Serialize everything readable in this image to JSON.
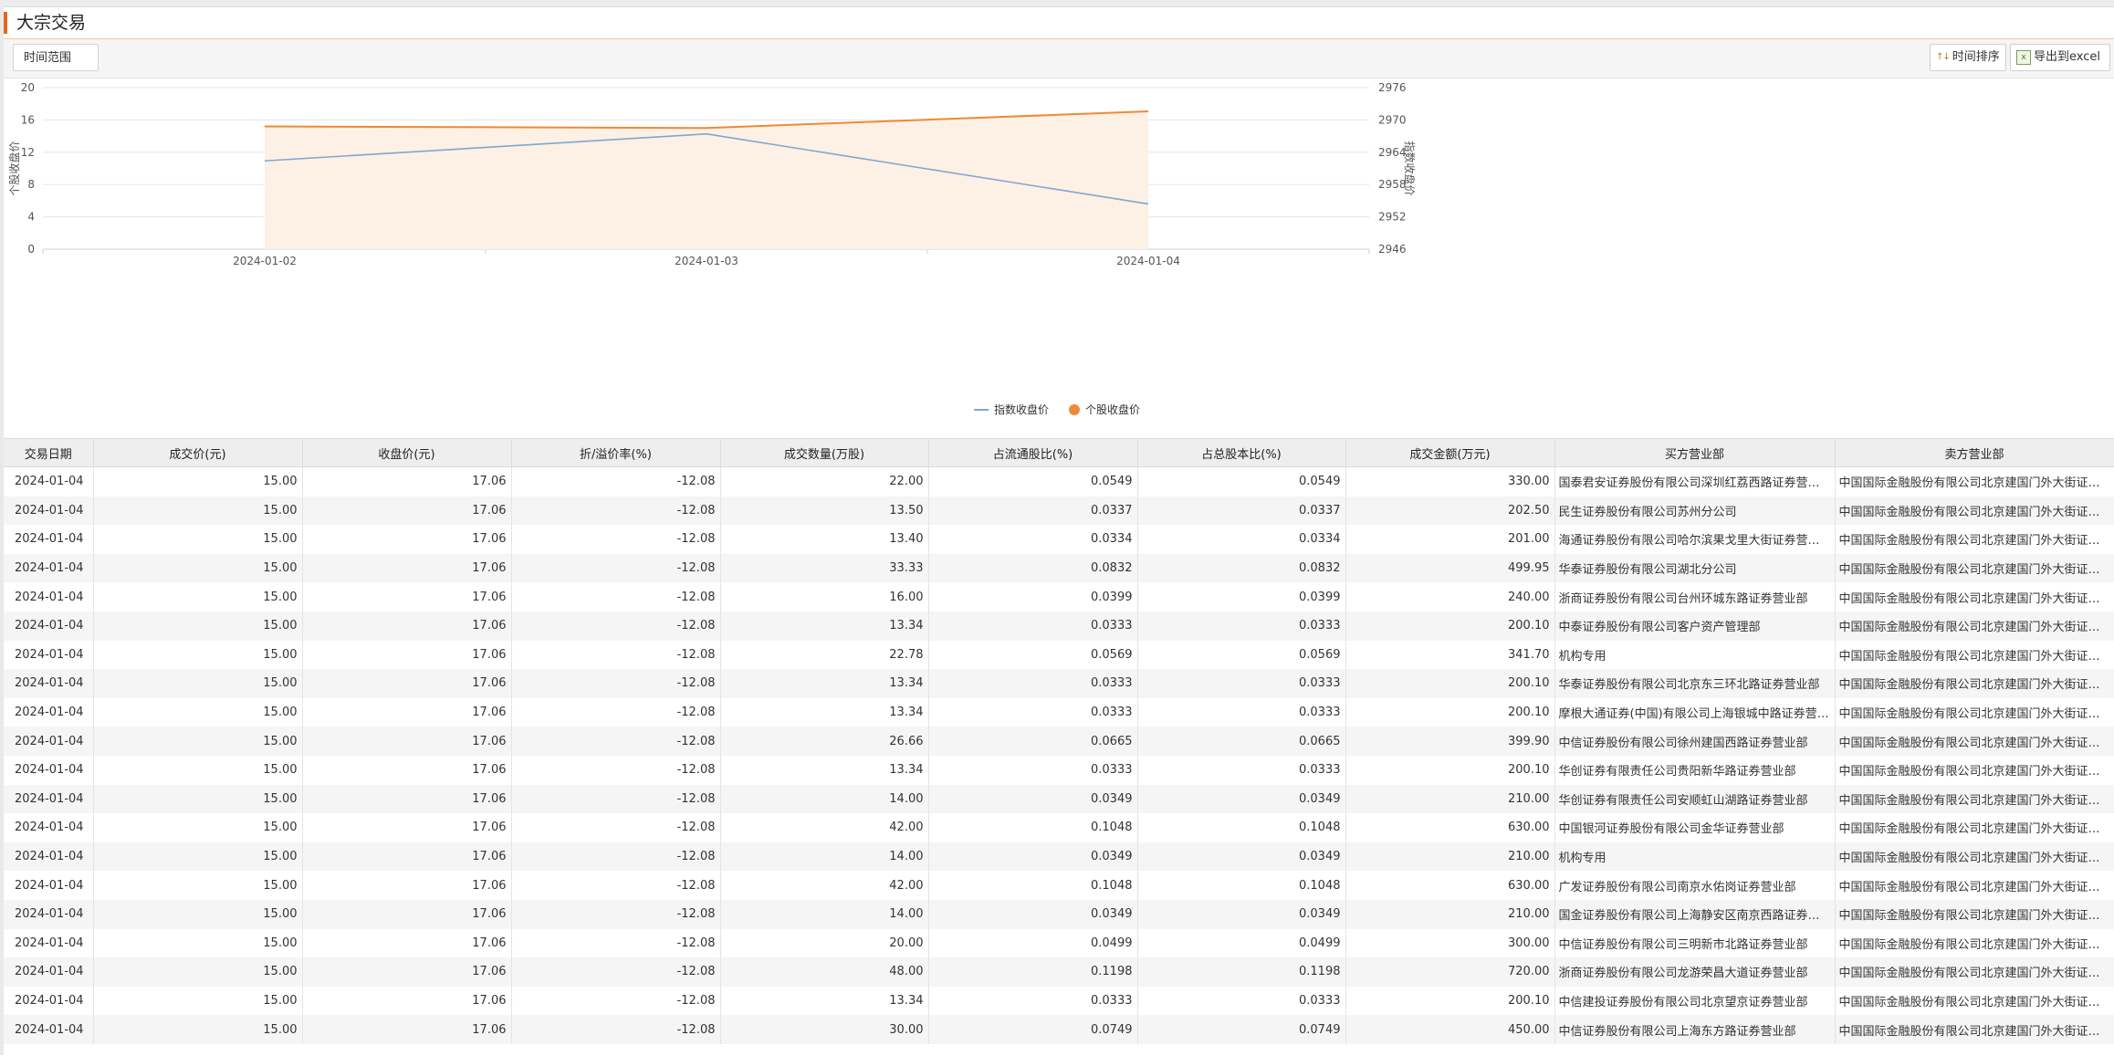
{
  "page": {
    "title": "大宗交易"
  },
  "toolbar": {
    "time_range_label": "时间范围",
    "sort_label": "时间排序",
    "export_label": "导出到excel"
  },
  "chart_data": {
    "type": "line",
    "x": [
      "2024-01-02",
      "2024-01-03",
      "2024-01-04"
    ],
    "series": [
      {
        "name": "指数收盘价",
        "axis": "right",
        "values": [
          2962.4,
          2967.4,
          2954.4
        ],
        "color": "#7fa7cf"
      },
      {
        "name": "个股收盘价",
        "axis": "left",
        "values": [
          15.2,
          15.0,
          17.06
        ],
        "color": "#ee8a36",
        "fill": "#fdf0e5"
      }
    ],
    "ylabel_left": "个股收盘价",
    "ylabel_right": "指数收盘价",
    "yleft": {
      "range": [
        0,
        20
      ],
      "ticks": [
        0,
        4,
        8,
        12,
        16,
        20
      ]
    },
    "yright": {
      "range": [
        2946,
        2976
      ],
      "ticks": [
        2946,
        2952,
        2958,
        2964,
        2970,
        2976
      ]
    },
    "grid": true,
    "legend": "bottom-center"
  },
  "table": {
    "columns": [
      "交易日期",
      "成交价(元)",
      "收盘价(元)",
      "折/溢价率(%)",
      "成交数量(万股)",
      "占流通股比(%)",
      "占总股本比(%)",
      "成交金额(万元)",
      "买方营业部",
      "卖方营业部"
    ],
    "rows": [
      [
        "2024-01-04",
        "15.00",
        "17.06",
        "-12.08",
        "22.00",
        "0.0549",
        "0.0549",
        "330.00",
        "国泰君安证券股份有限公司深圳红荔西路证券营业部",
        "中国国际金融股份有限公司北京建国门外大街证券营业部"
      ],
      [
        "2024-01-04",
        "15.00",
        "17.06",
        "-12.08",
        "13.50",
        "0.0337",
        "0.0337",
        "202.50",
        "民生证券股份有限公司苏州分公司",
        "中国国际金融股份有限公司北京建国门外大街证券营业部"
      ],
      [
        "2024-01-04",
        "15.00",
        "17.06",
        "-12.08",
        "13.40",
        "0.0334",
        "0.0334",
        "201.00",
        "海通证券股份有限公司哈尔滨果戈里大街证券营业部",
        "中国国际金融股份有限公司北京建国门外大街证券营业部"
      ],
      [
        "2024-01-04",
        "15.00",
        "17.06",
        "-12.08",
        "33.33",
        "0.0832",
        "0.0832",
        "499.95",
        "华泰证券股份有限公司湖北分公司",
        "中国国际金融股份有限公司北京建国门外大街证券营业部"
      ],
      [
        "2024-01-04",
        "15.00",
        "17.06",
        "-12.08",
        "16.00",
        "0.0399",
        "0.0399",
        "240.00",
        "浙商证券股份有限公司台州环城东路证券营业部",
        "中国国际金融股份有限公司北京建国门外大街证券营业部"
      ],
      [
        "2024-01-04",
        "15.00",
        "17.06",
        "-12.08",
        "13.34",
        "0.0333",
        "0.0333",
        "200.10",
        "中泰证券股份有限公司客户资产管理部",
        "中国国际金融股份有限公司北京建国门外大街证券营业部"
      ],
      [
        "2024-01-04",
        "15.00",
        "17.06",
        "-12.08",
        "22.78",
        "0.0569",
        "0.0569",
        "341.70",
        "机构专用",
        "中国国际金融股份有限公司北京建国门外大街证券营业部"
      ],
      [
        "2024-01-04",
        "15.00",
        "17.06",
        "-12.08",
        "13.34",
        "0.0333",
        "0.0333",
        "200.10",
        "华泰证券股份有限公司北京东三环北路证券营业部",
        "中国国际金融股份有限公司北京建国门外大街证券营业部"
      ],
      [
        "2024-01-04",
        "15.00",
        "17.06",
        "-12.08",
        "13.34",
        "0.0333",
        "0.0333",
        "200.10",
        "摩根大通证券(中国)有限公司上海银城中路证券营业部",
        "中国国际金融股份有限公司北京建国门外大街证券营业部"
      ],
      [
        "2024-01-04",
        "15.00",
        "17.06",
        "-12.08",
        "26.66",
        "0.0665",
        "0.0665",
        "399.90",
        "中信证券股份有限公司徐州建国西路证券营业部",
        "中国国际金融股份有限公司北京建国门外大街证券营业部"
      ],
      [
        "2024-01-04",
        "15.00",
        "17.06",
        "-12.08",
        "13.34",
        "0.0333",
        "0.0333",
        "200.10",
        "华创证券有限责任公司贵阳新华路证券营业部",
        "中国国际金融股份有限公司北京建国门外大街证券营业部"
      ],
      [
        "2024-01-04",
        "15.00",
        "17.06",
        "-12.08",
        "14.00",
        "0.0349",
        "0.0349",
        "210.00",
        "华创证券有限责任公司安顺虹山湖路证券营业部",
        "中国国际金融股份有限公司北京建国门外大街证券营业部"
      ],
      [
        "2024-01-04",
        "15.00",
        "17.06",
        "-12.08",
        "42.00",
        "0.1048",
        "0.1048",
        "630.00",
        "中国银河证券股份有限公司金华证券营业部",
        "中国国际金融股份有限公司北京建国门外大街证券营业部"
      ],
      [
        "2024-01-04",
        "15.00",
        "17.06",
        "-12.08",
        "14.00",
        "0.0349",
        "0.0349",
        "210.00",
        "机构专用",
        "中国国际金融股份有限公司北京建国门外大街证券营业部"
      ],
      [
        "2024-01-04",
        "15.00",
        "17.06",
        "-12.08",
        "42.00",
        "0.1048",
        "0.1048",
        "630.00",
        "广发证券股份有限公司南京水佑岗证券营业部",
        "中国国际金融股份有限公司北京建国门外大街证券营业部"
      ],
      [
        "2024-01-04",
        "15.00",
        "17.06",
        "-12.08",
        "14.00",
        "0.0349",
        "0.0349",
        "210.00",
        "国金证券股份有限公司上海静安区南京西路证券营业部",
        "中国国际金融股份有限公司北京建国门外大街证券营业部"
      ],
      [
        "2024-01-04",
        "15.00",
        "17.06",
        "-12.08",
        "20.00",
        "0.0499",
        "0.0499",
        "300.00",
        "中信证券股份有限公司三明新市北路证券营业部",
        "中国国际金融股份有限公司北京建国门外大街证券营业部"
      ],
      [
        "2024-01-04",
        "15.00",
        "17.06",
        "-12.08",
        "48.00",
        "0.1198",
        "0.1198",
        "720.00",
        "浙商证券股份有限公司龙游荣昌大道证券营业部",
        "中国国际金融股份有限公司北京建国门外大街证券营业部"
      ],
      [
        "2024-01-04",
        "15.00",
        "17.06",
        "-12.08",
        "13.34",
        "0.0333",
        "0.0333",
        "200.10",
        "中信建投证券股份有限公司北京望京证券营业部",
        "中国国际金融股份有限公司北京建国门外大街证券营业部"
      ],
      [
        "2024-01-04",
        "15.00",
        "17.06",
        "-12.08",
        "30.00",
        "0.0749",
        "0.0749",
        "450.00",
        "中信证券股份有限公司上海东方路证券营业部",
        "中国国际金融股份有限公司北京建国门外大街证券营业部"
      ]
    ]
  }
}
